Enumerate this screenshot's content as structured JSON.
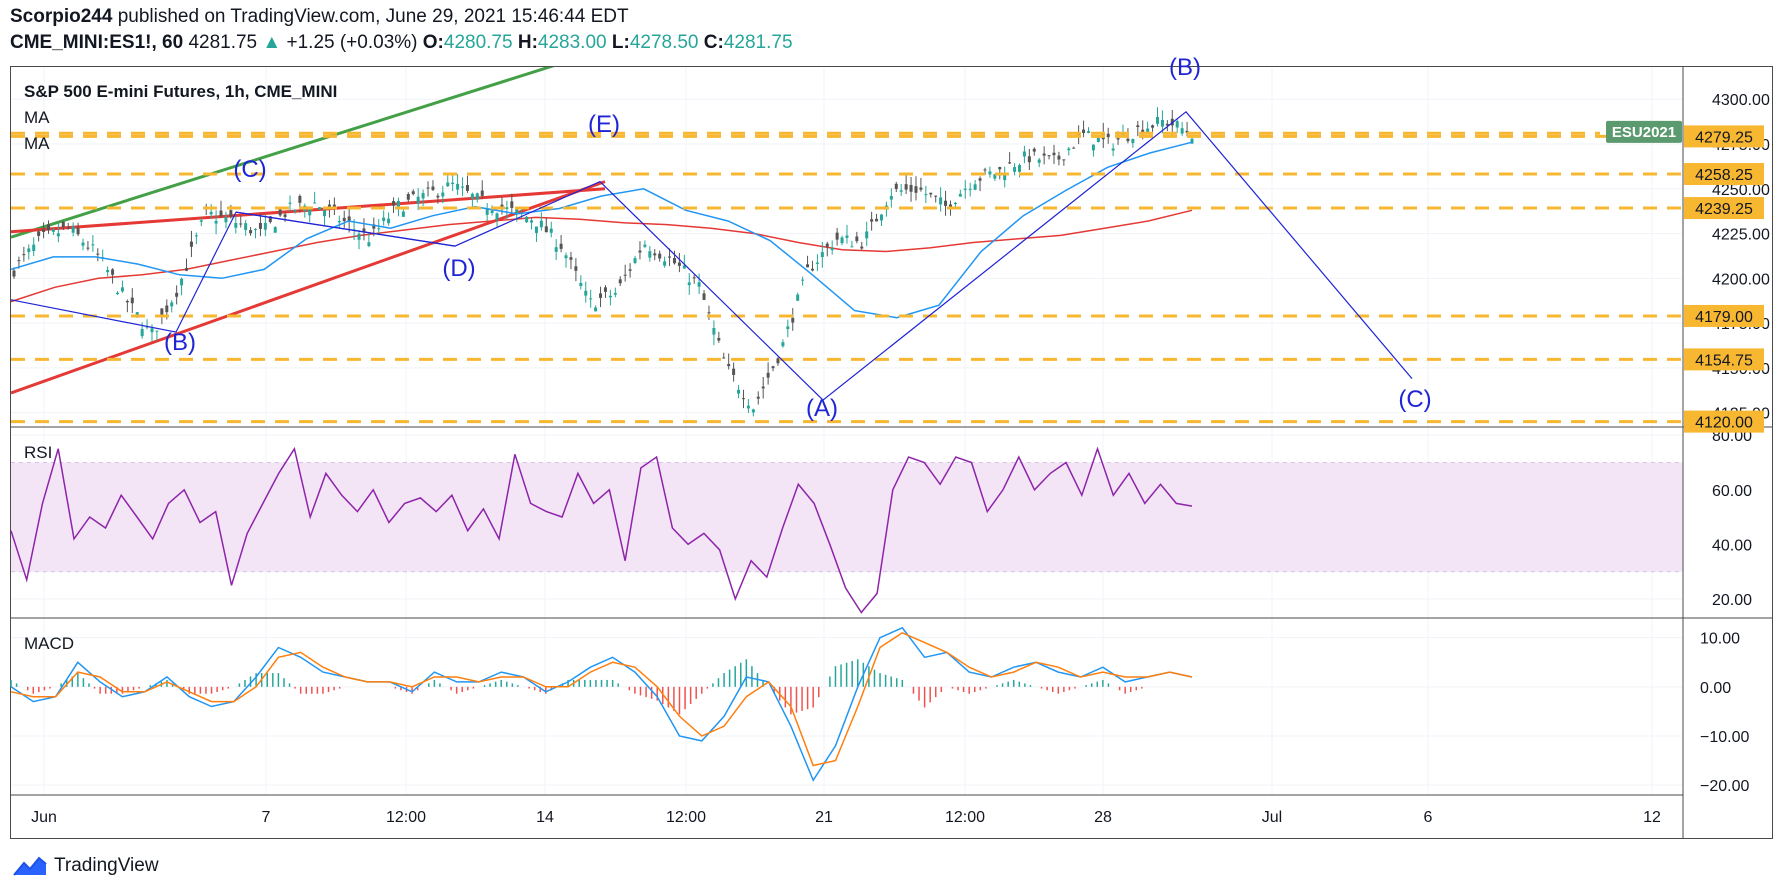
{
  "header": {
    "publisher": "Scorpio244",
    "published_text": "published on TradingView.com, June 29, 2021 15:46:44 EDT",
    "symbol": "CME_MINI:ES1!, 60",
    "last": "4281.75",
    "change": "+1.25 (+0.03%)",
    "open_label": "O:",
    "open": "4280.75",
    "high_label": "H:",
    "high": "4283.00",
    "low_label": "L:",
    "low": "4278.50",
    "close_label": "C:",
    "close": "4281.75"
  },
  "panes": {
    "price": {
      "title": "S&P 500 E-mini Futures, 1h, CME_MINI",
      "ma1": "MA",
      "ma2": "MA",
      "badge": "ESU2021"
    },
    "rsi": {
      "title": "RSI"
    },
    "macd": {
      "title": "MACD"
    }
  },
  "footer": {
    "brand": "TradingView"
  },
  "colors": {
    "level": "#f7b731",
    "ma_fast": "#2196f3",
    "ma_slow": "#e53935",
    "wave": "#1f24d6",
    "trend_green": "#43a047",
    "trend_red": "#e53935",
    "rsi": "#8e24aa",
    "rsi_band": "#f3e5f5",
    "macd": "#2196f3",
    "signal": "#ff7f0e",
    "badge": "#5b9a6e"
  },
  "chart_data": [
    {
      "type": "line",
      "title": "S&P 500 E-mini Futures, 1h, CME_MINI",
      "x_tick_labels": [
        "Jun",
        "7",
        "12:00",
        "14",
        "12:00",
        "21",
        "12:00",
        "28",
        "Jul",
        "6",
        "12"
      ],
      "y_ticks": [
        4125,
        4150,
        4175,
        4200,
        4225,
        4250,
        4275,
        4300
      ],
      "y_tick_labels": [
        "4125.00",
        "4150.00",
        "4175.00",
        "4200.00",
        "4225.00",
        "4250.00",
        "4275.00",
        "4300.00"
      ],
      "ylim": [
        4117,
        4318
      ],
      "levels": [
        {
          "value": 4279.25,
          "label": "4279.25"
        },
        {
          "value": 4258.25,
          "label": "4258.25"
        },
        {
          "value": 4239.25,
          "label": "4239.25"
        },
        {
          "value": 4179.0,
          "label": "4179.00"
        },
        {
          "value": 4154.75,
          "label": "4154.75"
        },
        {
          "value": 4120.0,
          "label": "4120.00"
        }
      ],
      "badge_level": 4281.75,
      "wave_labels": [
        "(B)",
        "(C)",
        "(D)",
        "(E)",
        "(A)",
        "(B)",
        "(C)"
      ],
      "series": [
        {
          "name": "MA",
          "values": [
            4205,
            4212,
            4212,
            4208,
            4202,
            4200,
            4205,
            4222,
            4232,
            4228,
            4235,
            4240,
            4236,
            4239,
            4246,
            4250,
            4238,
            4232,
            4221,
            4202,
            4182,
            4178,
            4185,
            4215,
            4235,
            4249,
            4262,
            4270,
            4276
          ]
        },
        {
          "name": "MA",
          "values": [
            4187,
            4195,
            4200,
            4202,
            4205,
            4210,
            4215,
            4220,
            4224,
            4227,
            4230,
            4232,
            4234,
            4233,
            4231,
            4230,
            4228,
            4225,
            4220,
            4216,
            4215,
            4217,
            4220,
            4222,
            4224,
            4228,
            4232,
            4238
          ]
        }
      ]
    },
    {
      "type": "line",
      "title": "RSI",
      "y_ticks": [
        20,
        40,
        60,
        80
      ],
      "y_tick_labels": [
        "20.00",
        "40.00",
        "60.00",
        "80.00"
      ],
      "ylim": [
        13,
        83
      ],
      "band": [
        30,
        70
      ],
      "series": [
        {
          "name": "RSI",
          "values": [
            45,
            27,
            55,
            75,
            42,
            50,
            46,
            58,
            50,
            42,
            55,
            60,
            48,
            52,
            25,
            44,
            55,
            66,
            75,
            50,
            66,
            58,
            52,
            60,
            48,
            55,
            57,
            52,
            58,
            45,
            53,
            42,
            73,
            55,
            52,
            50,
            66,
            55,
            60,
            34,
            68,
            72,
            46,
            40,
            44,
            38,
            20,
            34,
            28,
            46,
            62,
            55,
            40,
            24,
            15,
            22,
            60,
            72,
            70,
            62,
            72,
            70,
            52,
            60,
            72,
            60,
            66,
            70,
            58,
            75,
            58,
            66,
            55,
            62,
            55,
            54
          ]
        }
      ]
    },
    {
      "type": "line",
      "title": "MACD",
      "y_ticks": [
        -20,
        -10,
        0,
        10
      ],
      "y_tick_labels": [
        "−20.00",
        "−10.00",
        "0.00",
        "10.00"
      ],
      "ylim": [
        -22,
        14
      ],
      "series": [
        {
          "name": "MACD",
          "values": [
            0,
            -3,
            -2,
            5,
            1,
            -2,
            -1,
            2,
            -2,
            -4,
            -3,
            2,
            8,
            6,
            3,
            2,
            1,
            1,
            -1,
            3,
            1,
            1,
            3,
            2,
            -1,
            1,
            4,
            6,
            3,
            -2,
            -10,
            -11,
            -6,
            2,
            1,
            -8,
            -19,
            -12,
            0,
            10,
            12,
            6,
            7,
            3,
            2,
            4,
            5,
            3,
            2,
            4,
            1,
            2,
            3,
            2
          ]
        },
        {
          "name": "Signal",
          "values": [
            -1,
            -2,
            -2,
            3,
            2,
            -1,
            -1,
            1,
            -1,
            -3,
            -3,
            0,
            6,
            7,
            4,
            2,
            1,
            1,
            0,
            2,
            2,
            1,
            2,
            2,
            0,
            0,
            3,
            5,
            4,
            0,
            -6,
            -10,
            -8,
            -2,
            1,
            -4,
            -16,
            -15,
            -4,
            8,
            11,
            9,
            7,
            4,
            2,
            3,
            5,
            4,
            2,
            3,
            2,
            2,
            3,
            2
          ]
        }
      ]
    }
  ]
}
